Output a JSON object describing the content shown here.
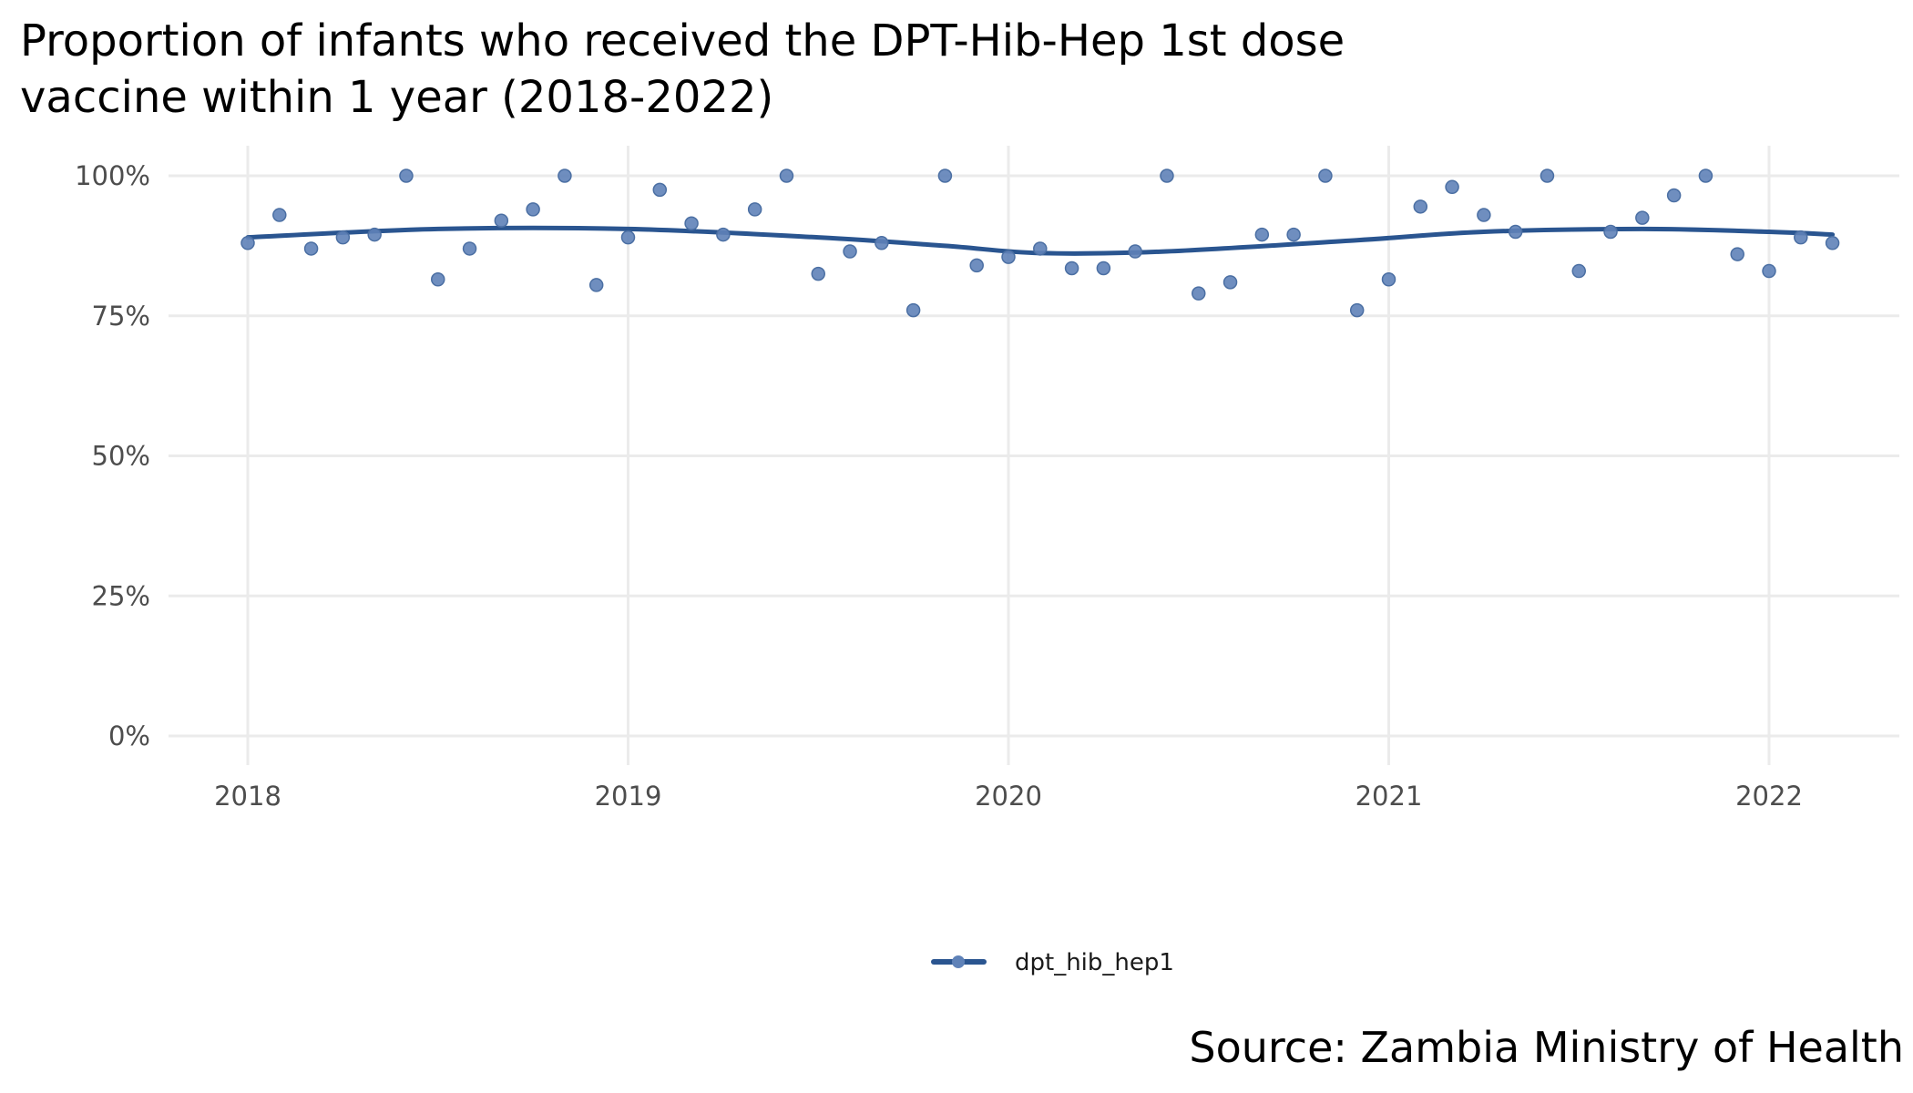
{
  "chart_data": {
    "type": "scatter",
    "title_lines": [
      "Proportion of infants who received the DPT-Hib-Hep 1st dose",
      "vaccine within 1 year (2018-2022)"
    ],
    "caption": "Source: Zambia Ministry of Health",
    "xlabel": "",
    "ylabel": "",
    "x_ticks": [
      "2018",
      "2019",
      "2020",
      "2021",
      "2022"
    ],
    "y_ticks": [
      "0%",
      "25%",
      "50%",
      "75%",
      "100%"
    ],
    "ylim": [
      0,
      1
    ],
    "xlim": [
      "2017-10",
      "2022-06"
    ],
    "grid": true,
    "legend": {
      "position": "bottom",
      "entries": [
        "dpt_hib_hep1"
      ]
    },
    "colors": {
      "points": "#5f82b8",
      "smooth_line": "#2a5590",
      "grid": "#ebebeb"
    },
    "series": [
      {
        "name": "dpt_hib_hep1",
        "points": [
          {
            "x": "2018-01",
            "y": 0.88
          },
          {
            "x": "2018-02",
            "y": 0.93
          },
          {
            "x": "2018-03",
            "y": 0.87
          },
          {
            "x": "2018-04",
            "y": 0.89
          },
          {
            "x": "2018-05",
            "y": 0.895
          },
          {
            "x": "2018-06",
            "y": 1.0
          },
          {
            "x": "2018-07",
            "y": 0.815
          },
          {
            "x": "2018-08",
            "y": 0.87
          },
          {
            "x": "2018-09",
            "y": 0.92
          },
          {
            "x": "2018-10",
            "y": 0.94
          },
          {
            "x": "2018-11",
            "y": 1.0
          },
          {
            "x": "2018-12",
            "y": 0.805
          },
          {
            "x": "2019-01",
            "y": 0.89
          },
          {
            "x": "2019-02",
            "y": 0.975
          },
          {
            "x": "2019-03",
            "y": 0.915
          },
          {
            "x": "2019-04",
            "y": 0.895
          },
          {
            "x": "2019-05",
            "y": 0.94
          },
          {
            "x": "2019-06",
            "y": 1.0
          },
          {
            "x": "2019-07",
            "y": 0.825
          },
          {
            "x": "2019-08",
            "y": 0.865
          },
          {
            "x": "2019-09",
            "y": 0.88
          },
          {
            "x": "2019-10",
            "y": 0.76
          },
          {
            "x": "2019-11",
            "y": 1.0
          },
          {
            "x": "2019-12",
            "y": 0.84
          },
          {
            "x": "2020-01",
            "y": 0.855
          },
          {
            "x": "2020-02",
            "y": 0.87
          },
          {
            "x": "2020-03",
            "y": 0.835
          },
          {
            "x": "2020-04",
            "y": 0.835
          },
          {
            "x": "2020-05",
            "y": 0.865
          },
          {
            "x": "2020-06",
            "y": 1.0
          },
          {
            "x": "2020-07",
            "y": 0.79
          },
          {
            "x": "2020-08",
            "y": 0.81
          },
          {
            "x": "2020-09",
            "y": 0.895
          },
          {
            "x": "2020-10",
            "y": 0.895
          },
          {
            "x": "2020-11",
            "y": 1.0
          },
          {
            "x": "2020-12",
            "y": 0.76
          },
          {
            "x": "2021-01",
            "y": 0.815
          },
          {
            "x": "2021-02",
            "y": 0.945
          },
          {
            "x": "2021-03",
            "y": 0.98
          },
          {
            "x": "2021-04",
            "y": 0.93
          },
          {
            "x": "2021-05",
            "y": 0.9
          },
          {
            "x": "2021-06",
            "y": 1.0
          },
          {
            "x": "2021-07",
            "y": 0.83
          },
          {
            "x": "2021-08",
            "y": 0.9
          },
          {
            "x": "2021-09",
            "y": 0.925
          },
          {
            "x": "2021-10",
            "y": 0.965
          },
          {
            "x": "2021-11",
            "y": 1.0
          },
          {
            "x": "2021-12",
            "y": 0.86
          },
          {
            "x": "2022-01",
            "y": 0.83
          },
          {
            "x": "2022-02",
            "y": 0.89
          },
          {
            "x": "2022-03",
            "y": 0.88
          }
        ],
        "smooth": [
          {
            "x": "2018-01",
            "y": 0.89
          },
          {
            "x": "2018-07",
            "y": 0.905
          },
          {
            "x": "2019-01",
            "y": 0.905
          },
          {
            "x": "2019-07",
            "y": 0.89
          },
          {
            "x": "2019-11",
            "y": 0.875
          },
          {
            "x": "2020-02",
            "y": 0.862
          },
          {
            "x": "2020-06",
            "y": 0.865
          },
          {
            "x": "2020-12",
            "y": 0.885
          },
          {
            "x": "2021-04",
            "y": 0.9
          },
          {
            "x": "2021-09",
            "y": 0.905
          },
          {
            "x": "2022-01",
            "y": 0.9
          },
          {
            "x": "2022-03",
            "y": 0.895
          }
        ]
      }
    ]
  }
}
